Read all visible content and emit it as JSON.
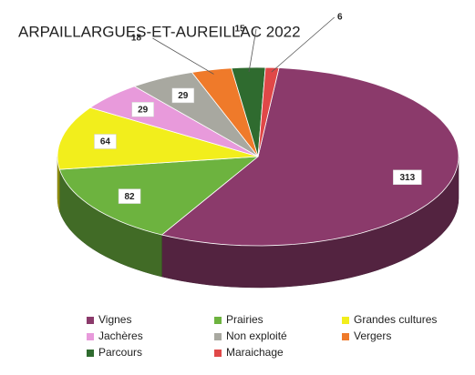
{
  "chart_data": {
    "type": "pie",
    "title": "ARPAILLARGUES-ET-AUREILLAC 2022",
    "categories": [
      "Vignes",
      "Prairies",
      "Grandes cultures",
      "Jachères",
      "Non exploité",
      "Vergers",
      "Parcours",
      "Maraichage"
    ],
    "values": [
      313,
      82,
      64,
      29,
      29,
      18,
      15,
      6
    ],
    "colors": [
      "#8b3a6b",
      "#6db33f",
      "#f2ee1c",
      "#e89adb",
      "#a8a8a0",
      "#ef7a2a",
      "#2f6b2f",
      "#e04848"
    ],
    "legend": "bottom"
  }
}
